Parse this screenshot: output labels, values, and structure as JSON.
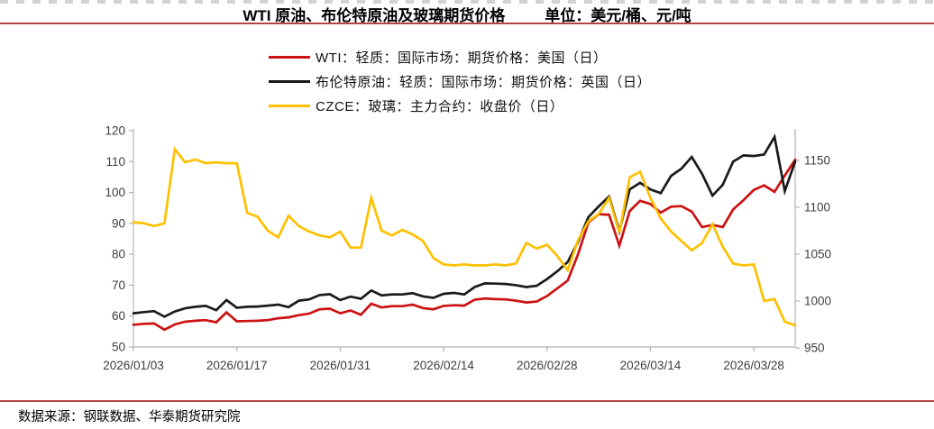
{
  "header": {
    "title": "WTI 原油、布伦特原油及玻璃期货价格",
    "units": "单位：美元/桶、元/吨"
  },
  "footer": {
    "source": "数据来源：钢联数据、华泰期货研究院"
  },
  "colors": {
    "rule": "#b5433f",
    "wti": "#cc1112",
    "brent": "#1a1a1a",
    "glass": "#ffc000",
    "axis_line": "#b3b3b3",
    "tick_text": "#3d3d3d"
  },
  "chart_data": {
    "type": "line",
    "title": "WTI 原油、布伦特原油及玻璃期货价格",
    "units_label": "单位：美元/桶、元/吨",
    "legend_position": "top",
    "grid": false,
    "x_tick_labels": [
      "2026/01/03",
      "2026/01/17",
      "2026/01/31",
      "2026/02/14",
      "2026/02/28",
      "2026/03/14",
      "2026/03/28"
    ],
    "x_tick_indices": [
      0,
      10,
      20,
      30,
      40,
      50,
      60
    ],
    "left_axis": {
      "min": 50,
      "max": 120,
      "ticks": [
        50,
        60,
        70,
        80,
        90,
        100,
        110,
        120
      ]
    },
    "right_axis": {
      "min": 950,
      "max": 1150,
      "ticks": [
        950,
        1000,
        1050,
        1100,
        1150
      ]
    },
    "series": [
      {
        "name": "WTI：轻质：国际市场：期货价格：美国（日）",
        "color": "#cc1112",
        "axis": "left",
        "values": [
          57.2,
          57.5,
          57.6,
          55.6,
          57.3,
          58.2,
          58.5,
          58.7,
          58.0,
          61.2,
          58.3,
          58.4,
          58.5,
          58.7,
          59.3,
          59.6,
          60.3,
          60.8,
          62.2,
          62.4,
          60.9,
          61.8,
          60.4,
          64.0,
          62.8,
          63.2,
          63.2,
          63.7,
          62.6,
          62.2,
          63.3,
          63.5,
          63.4,
          65.3,
          65.7,
          65.5,
          65.4,
          65.0,
          64.4,
          64.7,
          66.5,
          69.0,
          71.5,
          80.0,
          90.3,
          93.0,
          92.8,
          82.8,
          94.0,
          97.3,
          96.3,
          93.5,
          95.4,
          95.6,
          93.8,
          88.8,
          89.5,
          88.8,
          94.5,
          97.5,
          100.8,
          102.3,
          100.2,
          105.5,
          110.6
        ]
      },
      {
        "name": "布伦特原油：轻质：国际市场：期货价格：英国（日）",
        "color": "#1a1a1a",
        "axis": "left",
        "values": [
          60.9,
          61.3,
          61.6,
          59.8,
          61.5,
          62.5,
          63.0,
          63.3,
          61.9,
          65.2,
          62.7,
          63.0,
          63.1,
          63.4,
          63.7,
          62.9,
          65.0,
          65.4,
          66.8,
          67.1,
          65.2,
          66.3,
          65.6,
          68.3,
          66.7,
          67.0,
          67.0,
          67.4,
          66.4,
          65.9,
          67.2,
          67.5,
          67.0,
          69.4,
          70.6,
          70.5,
          70.4,
          70.0,
          69.4,
          69.8,
          72.0,
          74.5,
          77.5,
          84.0,
          92.0,
          95.5,
          98.7,
          87.5,
          101.0,
          103.1,
          101.0,
          99.8,
          105.4,
          107.7,
          111.5,
          106.0,
          99.0,
          102.5,
          110.0,
          112.0,
          111.8,
          112.3,
          118.0,
          100.5,
          110.0
        ]
      },
      {
        "name": "CZCE：玻璃：主力合约：收盘价（日）",
        "color": "#ffc000",
        "axis": "right",
        "values": [
          1084,
          1083,
          1080,
          1083,
          1162,
          1148,
          1151,
          1147,
          1148,
          1147,
          1147,
          1094,
          1090,
          1075,
          1068,
          1091,
          1080,
          1074,
          1070,
          1068,
          1074,
          1057,
          1057,
          1110,
          1075,
          1070,
          1076,
          1071,
          1064,
          1046,
          1039,
          1038,
          1039,
          1038,
          1038,
          1039,
          1038,
          1040,
          1062,
          1056,
          1060,
          1048,
          1033,
          1065,
          1085,
          1093,
          1110,
          1073,
          1132,
          1138,
          1110,
          1088,
          1074,
          1064,
          1054,
          1062,
          1082,
          1058,
          1040,
          1038,
          1039,
          1000,
          1002,
          978,
          974
        ]
      }
    ]
  }
}
